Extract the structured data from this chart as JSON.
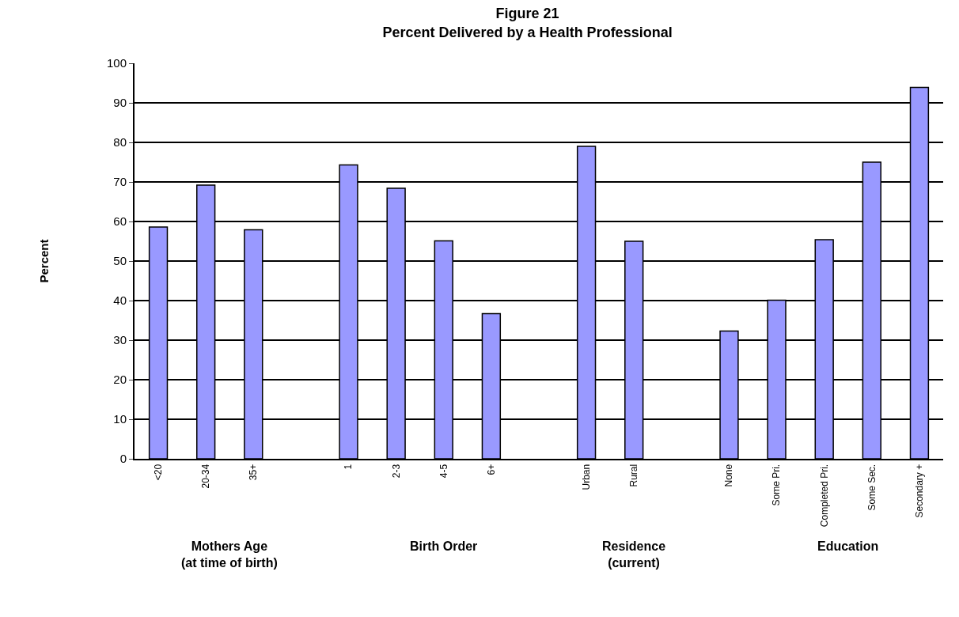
{
  "chart_data": {
    "type": "bar",
    "title": "Figure 21\nPercent Delivered by a Health Professional",
    "ylabel": "Percent",
    "categories": [
      "<20",
      "20-34",
      "35+",
      null,
      "1",
      "2-3",
      "4-5",
      "6+",
      null,
      "Urban",
      "Rural",
      null,
      "None",
      "Some Pri.",
      "Completed Pri.",
      "Some Sec.",
      "Secondary +"
    ],
    "values": [
      58.6,
      69.2,
      57.9,
      null,
      74.3,
      68.4,
      55.1,
      36.7,
      null,
      79.0,
      55.0,
      null,
      32.3,
      40.1,
      55.4,
      75.0,
      93.9
    ],
    "color": "#9999ff",
    "ylim": [
      0,
      100
    ],
    "yticks": [
      0,
      10,
      20,
      30,
      40,
      50,
      60,
      70,
      80,
      90,
      100
    ],
    "grid": "y",
    "annotations": [
      "Mothers Age\n(at time of birth)",
      "Birth Order",
      "Residence\n(current)",
      "Education"
    ]
  }
}
